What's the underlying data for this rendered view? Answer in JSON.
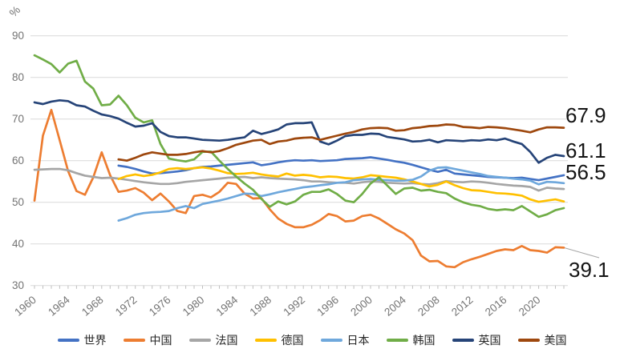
{
  "chart_data": {
    "type": "line",
    "title": "",
    "ylabel": "%",
    "xlabel": "",
    "ylim": [
      30,
      90
    ],
    "yticks": [
      30,
      40,
      50,
      60,
      70,
      80,
      90
    ],
    "x_start": 1960,
    "x_end": 2023,
    "xtick_labels": [
      1960,
      1964,
      1968,
      1972,
      1976,
      1980,
      1984,
      1988,
      1992,
      1996,
      2000,
      2004,
      2008,
      2012,
      2016,
      2020
    ],
    "grid": true,
    "legend_position": "bottom",
    "grid_color": "#D9D9D9",
    "tick_color": "#BFBFBF",
    "axis_text_color": "#737373",
    "leader_line_color": "#A6A6A6",
    "background_color": "#FFFFFF",
    "series": [
      {
        "name": "世界",
        "color": "#4472C4",
        "start_year": 1970,
        "values": [
          58.8,
          58.5,
          58.0,
          57.4,
          56.9,
          57.0,
          57.2,
          57.4,
          57.7,
          58.2,
          58.5,
          58.6,
          58.8,
          59.0,
          59.2,
          59.4,
          59.6,
          58.9,
          59.2,
          59.6,
          59.9,
          60.1,
          60.0,
          60.1,
          59.9,
          60.0,
          60.1,
          60.4,
          60.5,
          60.6,
          60.8,
          60.5,
          60.2,
          59.8,
          59.5,
          59.0,
          58.4,
          57.8,
          57.3,
          57.8,
          56.9,
          56.7,
          56.5,
          56.3,
          56.1,
          56.0,
          55.9,
          55.8,
          55.9,
          55.6,
          55.3,
          55.7,
          56.1,
          56.5
        ]
      },
      {
        "name": "中国",
        "color": "#ED7D31",
        "start_year": 1960,
        "values": [
          50.4,
          66.0,
          72.2,
          64.9,
          57.5,
          52.7,
          51.8,
          56.0,
          62.0,
          56.5,
          52.5,
          52.8,
          53.4,
          52.3,
          50.5,
          52.1,
          50.2,
          47.9,
          47.4,
          51.5,
          51.8,
          51.2,
          52.5,
          54.7,
          54.4,
          52.1,
          50.9,
          51.0,
          48.3,
          46.1,
          44.8,
          44.0,
          44.0,
          44.6,
          45.7,
          47.2,
          46.7,
          45.4,
          45.6,
          46.7,
          47.0,
          46.1,
          44.8,
          43.5,
          42.5,
          40.9,
          37.2,
          35.8,
          35.9,
          34.6,
          34.4,
          35.6,
          36.3,
          36.9,
          37.6,
          38.3,
          38.7,
          38.5,
          39.5,
          38.5,
          38.3,
          37.9,
          39.2,
          39.1
        ]
      },
      {
        "name": "法国",
        "color": "#A6A6A6",
        "start_year": 1960,
        "values": [
          57.8,
          57.9,
          58.0,
          58.0,
          57.7,
          57.0,
          56.4,
          56.1,
          55.8,
          55.9,
          55.7,
          55.4,
          55.1,
          54.8,
          54.6,
          54.4,
          54.4,
          54.6,
          54.9,
          55.1,
          55.3,
          55.5,
          55.7,
          55.9,
          56.0,
          56.1,
          55.8,
          56.0,
          55.8,
          55.7,
          55.6,
          55.5,
          55.3,
          55.0,
          55.0,
          54.8,
          54.7,
          54.7,
          54.5,
          54.8,
          55.0,
          54.9,
          54.7,
          54.6,
          54.5,
          54.6,
          54.4,
          54.3,
          54.6,
          55.1,
          54.9,
          54.8,
          55.0,
          54.9,
          54.7,
          54.4,
          54.2,
          54.0,
          53.9,
          53.7,
          52.8,
          53.5,
          53.3,
          53.2
        ]
      },
      {
        "name": "德国",
        "color": "#FFC000",
        "start_year": 1970,
        "values": [
          55.6,
          56.3,
          56.7,
          56.3,
          56.6,
          57.2,
          58.0,
          58.2,
          58.0,
          58.2,
          58.4,
          58.1,
          57.6,
          57.0,
          56.8,
          56.9,
          57.1,
          56.7,
          56.4,
          56.2,
          56.9,
          56.4,
          56.6,
          56.4,
          56.0,
          56.2,
          56.1,
          55.8,
          55.7,
          56.0,
          56.5,
          56.3,
          56.1,
          55.9,
          55.5,
          55.0,
          54.4,
          53.8,
          54.2,
          55.0,
          54.1,
          53.4,
          52.9,
          52.8,
          52.5,
          52.2,
          52.1,
          51.9,
          51.6,
          50.7,
          50.1,
          50.4,
          50.7,
          50.2
        ]
      },
      {
        "name": "日本",
        "color": "#6FA8DC",
        "start_year": 1970,
        "values": [
          45.6,
          46.2,
          47.0,
          47.4,
          47.6,
          47.7,
          47.9,
          48.6,
          49.1,
          48.6,
          49.6,
          50.0,
          50.4,
          50.9,
          51.5,
          52.1,
          52.0,
          51.5,
          51.9,
          52.4,
          52.8,
          53.2,
          53.6,
          53.8,
          54.1,
          54.3,
          54.7,
          54.8,
          55.3,
          55.5,
          55.6,
          55.4,
          55.3,
          55.2,
          55.2,
          55.4,
          56.2,
          57.6,
          58.3,
          58.4,
          58.0,
          57.6,
          57.2,
          56.8,
          56.3,
          56.1,
          55.9,
          55.7,
          55.5,
          55.2,
          54.3,
          54.9,
          54.8,
          54.6
        ]
      },
      {
        "name": "韩国",
        "color": "#70AD47",
        "start_year": 1960,
        "values": [
          85.3,
          84.3,
          83.2,
          81.2,
          83.3,
          84.0,
          79.0,
          77.3,
          73.3,
          73.5,
          75.6,
          73.3,
          70.3,
          69.2,
          69.7,
          64.0,
          60.5,
          60.1,
          59.8,
          60.3,
          62.1,
          62.2,
          60.0,
          58.0,
          56.2,
          54.5,
          53.0,
          50.8,
          48.9,
          50.2,
          49.5,
          50.2,
          51.8,
          52.5,
          52.5,
          53.1,
          52.0,
          50.4,
          50.0,
          52.0,
          54.5,
          56.0,
          54.0,
          52.0,
          53.3,
          53.5,
          52.8,
          53.0,
          52.5,
          52.2,
          50.9,
          50.0,
          49.4,
          49.1,
          48.4,
          48.1,
          48.3,
          48.1,
          49.1,
          47.8,
          46.5,
          47.1,
          48.1,
          48.6
        ]
      },
      {
        "name": "英国",
        "color": "#264478",
        "start_year": 1960,
        "values": [
          74.0,
          73.6,
          74.2,
          74.5,
          74.3,
          73.3,
          73.0,
          72.0,
          71.1,
          70.7,
          70.1,
          69.1,
          68.2,
          68.4,
          69.0,
          66.9,
          65.9,
          65.6,
          65.6,
          65.3,
          65.0,
          64.9,
          64.8,
          65.0,
          65.3,
          65.6,
          67.2,
          66.4,
          66.9,
          67.5,
          68.7,
          69.0,
          69.0,
          69.2,
          64.6,
          63.9,
          64.8,
          65.9,
          66.2,
          66.2,
          66.5,
          66.4,
          65.7,
          65.4,
          65.1,
          64.6,
          64.7,
          65.0,
          64.4,
          64.9,
          64.8,
          64.7,
          64.9,
          64.8,
          65.1,
          64.9,
          65.3,
          64.6,
          64.0,
          62.1,
          59.5,
          60.7,
          61.4,
          61.1
        ]
      },
      {
        "name": "美国",
        "color": "#9E480E",
        "start_year": 1970,
        "values": [
          60.3,
          60.0,
          60.7,
          61.5,
          62.0,
          61.7,
          61.4,
          61.4,
          61.6,
          62.0,
          62.3,
          62.0,
          62.3,
          63.0,
          63.8,
          64.3,
          64.8,
          65.0,
          64.0,
          64.6,
          64.8,
          65.3,
          65.5,
          65.6,
          65.0,
          65.5,
          66.0,
          66.5,
          66.9,
          67.5,
          67.8,
          67.9,
          67.8,
          67.2,
          67.3,
          67.8,
          68.0,
          68.3,
          68.4,
          68.7,
          68.6,
          68.1,
          68.0,
          67.8,
          68.1,
          68.0,
          67.8,
          67.5,
          67.2,
          66.8,
          67.5,
          68.0,
          68.0,
          67.9
        ]
      }
    ],
    "end_labels": [
      {
        "text": "67.9",
        "series": "美国",
        "y_value": 67.9
      },
      {
        "text": "61.1",
        "series": "英国",
        "y_value": 61.1
      },
      {
        "text": "56.5",
        "series": "世界",
        "y_value": 56.5
      },
      {
        "text": "39.1",
        "series": "中国",
        "y_value": 39.1
      }
    ]
  }
}
